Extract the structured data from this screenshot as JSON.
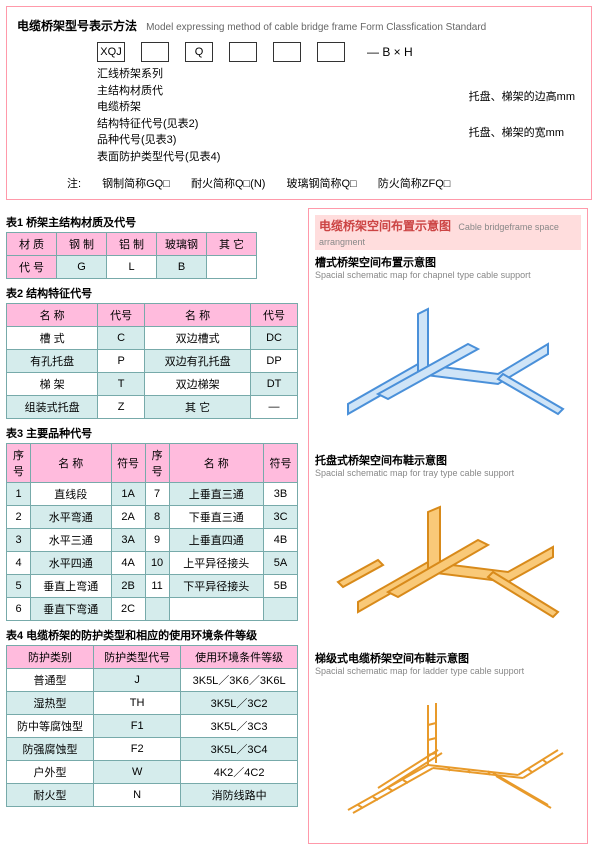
{
  "diagram": {
    "title_cn": "电缆桥架型号表示方法",
    "title_en": "Model expressing method of cable bridge frame Form Classfication Standard",
    "boxes": [
      "XQJ",
      "",
      "Q",
      "",
      "",
      ""
    ],
    "bh": "— B × H",
    "lines": [
      "汇线桥架系列",
      "主结构材质代",
      "电缆桥架",
      "结构特征代号(见表2)",
      "品种代号(见表3)",
      "表面防护类型代号(见表4)"
    ],
    "right1": "托盘、梯架的边高mm",
    "right2": "托盘、梯架的宽mm",
    "note_prefix": "注:",
    "notes": [
      "钢制简称GQ□",
      "耐火简称Q□(N)",
      "玻璃钢简称Q□",
      "防火简称ZFQ□"
    ]
  },
  "table1": {
    "title": "表1 桥架主结构材质及代号",
    "headers": [
      "材 质",
      "钢 制",
      "铝 制",
      "玻璃钢",
      "其 它"
    ],
    "row_label": "代 号",
    "values": [
      "G",
      "L",
      "B",
      ""
    ]
  },
  "table2": {
    "title": "表2 结构特征代号",
    "headers": [
      "名 称",
      "代号",
      "名 称",
      "代号"
    ],
    "rows": [
      [
        "槽 式",
        "C",
        "双边槽式",
        "DC"
      ],
      [
        "有孔托盘",
        "P",
        "双边有孔托盘",
        "DP"
      ],
      [
        "梯 架",
        "T",
        "双边梯架",
        "DT"
      ],
      [
        "组装式托盘",
        "Z",
        "其 它",
        "—"
      ]
    ]
  },
  "table3": {
    "title": "表3 主要品种代号",
    "headers": [
      "序号",
      "名 称",
      "符号",
      "序号",
      "名 称",
      "符号"
    ],
    "rows": [
      [
        "1",
        "直线段",
        "1A",
        "7",
        "上垂直三通",
        "3B"
      ],
      [
        "2",
        "水平弯通",
        "2A",
        "8",
        "下垂直三通",
        "3C"
      ],
      [
        "3",
        "水平三通",
        "3A",
        "9",
        "上垂直四通",
        "4B"
      ],
      [
        "4",
        "水平四通",
        "4A",
        "10",
        "上平异径接头",
        "5A"
      ],
      [
        "5",
        "垂直上弯通",
        "2B",
        "11",
        "下平异径接头",
        "5B"
      ],
      [
        "6",
        "垂直下弯通",
        "2C",
        "",
        "",
        ""
      ]
    ]
  },
  "table4": {
    "title": "表4 电缆桥架的防护类型和相应的使用环境条件等级",
    "headers": [
      "防护类别",
      "防护类型代号",
      "使用环境条件等级"
    ],
    "rows": [
      [
        "普通型",
        "J",
        "3K5L／3K6／3K6L"
      ],
      [
        "湿热型",
        "TH",
        "3K5L／3C2"
      ],
      [
        "防中等腐蚀型",
        "F1",
        "3K5L／3C3"
      ],
      [
        "防强腐蚀型",
        "F2",
        "3K5L／3C4"
      ],
      [
        "户外型",
        "W",
        "4K2／4C2"
      ],
      [
        "耐火型",
        "N",
        "消防线路中"
      ]
    ]
  },
  "right_panel": {
    "title_cn": "电缆桥架空间布置示意图",
    "title_en": "Cable bridgeframe space arrangment",
    "sec1_cn": "槽式桥架空间布置示意图",
    "sec1_en": "Spacial schematic map for chapnel type cable support",
    "sec2_cn": "托盘式桥架空间布鞋示意图",
    "sec2_en": "Spacial schematic map for tray type cable support",
    "sec3_cn": "梯级式电缆桥架空间布鞋示意图",
    "sec3_en": "Spacial schematic map for ladder type cable support"
  },
  "colors": {
    "border_pink": "#f9a",
    "header_pink": "#fbd",
    "cell_teal": "#d5ecec",
    "border_teal": "#7aa",
    "schematic_blue": "#4a90d9",
    "schematic_orange": "#f5a623"
  }
}
